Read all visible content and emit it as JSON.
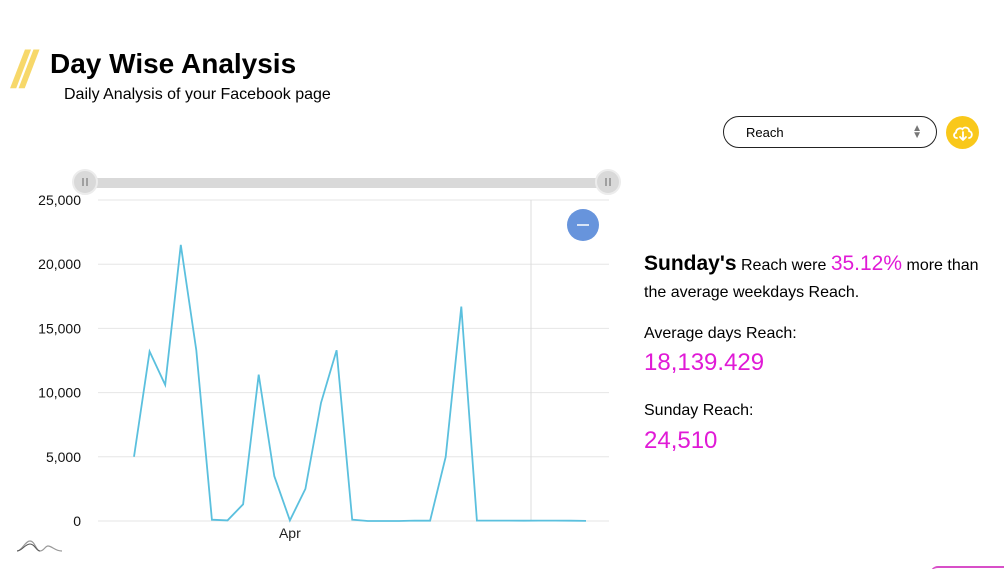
{
  "header": {
    "title": "Day Wise Analysis",
    "subtitle": "Daily Analysis of your Facebook page"
  },
  "controls": {
    "metric_selected": "Reach",
    "download_icon": "cloud-download-icon",
    "accent_color": "#f9c81a"
  },
  "insight": {
    "day_name": "Sunday's",
    "text_metric": "Reach were",
    "percent": "35.12%",
    "text_more": "more than",
    "text_line2": "the average weekdays Reach.",
    "avg_label": "Average days Reach:",
    "avg_value": "18,139.429",
    "day_label": "Sunday Reach:",
    "day_value": "24,510",
    "highlight_color": "#e01ad6"
  },
  "chart_data": {
    "type": "line",
    "title": "",
    "xlabel": "",
    "ylabel": "",
    "ylim": [
      0,
      25000
    ],
    "y_ticks": [
      "0",
      "5,000",
      "10,000",
      "15,000",
      "20,000",
      "25,000"
    ],
    "x_tick_labels": [
      {
        "index": 10,
        "label": "Apr"
      }
    ],
    "grid": "horizontal",
    "line_color": "#5bc0de",
    "series": [
      {
        "values": [
          5000,
          13200,
          10600,
          21500,
          13300,
          100,
          50,
          1300,
          11400,
          3500,
          50,
          2500,
          9200,
          13300,
          100,
          0,
          0,
          0,
          30,
          20,
          5000,
          16700,
          30,
          30,
          30,
          20,
          30,
          30,
          20,
          10
        ]
      }
    ],
    "reset_zoom_icon": "minus-icon"
  }
}
